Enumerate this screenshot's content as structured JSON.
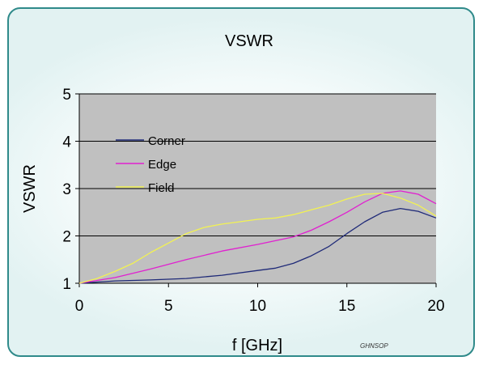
{
  "chart_data": {
    "type": "line",
    "title": "VSWR",
    "xlabel": "f [GHz]",
    "ylabel": "VSWR",
    "xlim": [
      0,
      20
    ],
    "ylim": [
      1,
      5
    ],
    "xticks": [
      "0",
      "5",
      "10",
      "15",
      "20"
    ],
    "yticks": [
      "1",
      "2",
      "3",
      "4",
      "5"
    ],
    "grid": true,
    "legend_position": "upper-left",
    "plot_background": "#c0c0c0",
    "watermark": "GHNSOP",
    "series": [
      {
        "name": "Corner",
        "color": "#1f2a78",
        "x": [
          0,
          2,
          4,
          6,
          8,
          10,
          11,
          12,
          13,
          14,
          15,
          16,
          17,
          18,
          19,
          20
        ],
        "y": [
          1.0,
          1.05,
          1.07,
          1.1,
          1.17,
          1.27,
          1.32,
          1.42,
          1.58,
          1.78,
          2.05,
          2.3,
          2.5,
          2.58,
          2.52,
          2.38
        ]
      },
      {
        "name": "Edge",
        "color": "#e020d0",
        "x": [
          0,
          2,
          4,
          6,
          8,
          10,
          12,
          13,
          14,
          15,
          16,
          17,
          18,
          19,
          20
        ],
        "y": [
          1.0,
          1.12,
          1.3,
          1.5,
          1.68,
          1.82,
          1.98,
          2.12,
          2.3,
          2.5,
          2.72,
          2.9,
          2.95,
          2.88,
          2.68
        ]
      },
      {
        "name": "Field",
        "color": "#f2f252",
        "x": [
          0,
          1,
          2,
          3,
          4,
          5,
          6,
          7,
          8,
          9,
          10,
          11,
          12,
          13,
          14,
          15,
          16,
          17,
          18,
          19,
          20
        ],
        "y": [
          1.0,
          1.1,
          1.25,
          1.42,
          1.65,
          1.85,
          2.05,
          2.18,
          2.25,
          2.3,
          2.35,
          2.38,
          2.45,
          2.55,
          2.65,
          2.78,
          2.88,
          2.9,
          2.8,
          2.65,
          2.42
        ]
      }
    ]
  }
}
